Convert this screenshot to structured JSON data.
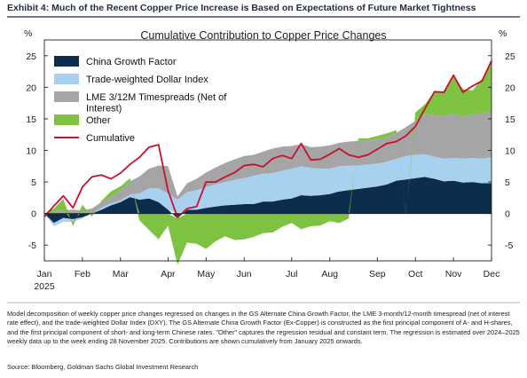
{
  "header": {
    "title": "Exhibit 4: Much of the Recent Copper Price Increase is Based on Expectations of Future Market Tightness"
  },
  "footer": {
    "note": "Model decomposition of weekly copper price changes regressed on changes in the GS Alternate China Growth Factor, the LME 3-month/12-month timespread (net of interest rate effect), and the trade-weighted Dollar Index (DXY). The GS Alternate China Growth Factor (Ex-Copper) is constructed as the first principal component of A- and H-shares, and the first principal component of short- and long-term Chinese rates. \"Other\" captures the regression residual and constant term. The regression is estimated over 2024–2025 weekly data up to the week ending 28 November 2025. Contributions are shown cumulatively from January 2025 onwards.",
    "source": "Source: Bloomberg, Goldman Sachs Global Investment Research"
  },
  "chart_data": {
    "type": "area",
    "title": "Cumulative Contribution to Copper Price Changes",
    "ylabel_left": "%",
    "ylabel_right": "%",
    "ylim": [
      -7.5,
      27.5
    ],
    "yticks": [
      -5,
      0,
      5,
      10,
      15,
      20,
      25
    ],
    "xlim": [
      0,
      47
    ],
    "xticks": [
      {
        "x": 0,
        "label": "Jan"
      },
      {
        "x": 4,
        "label": "Feb"
      },
      {
        "x": 8,
        "label": "Mar"
      },
      {
        "x": 13,
        "label": "Apr"
      },
      {
        "x": 17,
        "label": "May"
      },
      {
        "x": 21,
        "label": "Jun"
      },
      {
        "x": 26,
        "label": "Jul"
      },
      {
        "x": 30,
        "label": "Aug"
      },
      {
        "x": 35,
        "label": "Sep"
      },
      {
        "x": 39,
        "label": "Oct"
      },
      {
        "x": 43,
        "label": "Nov"
      },
      {
        "x": 47,
        "label": "Dec"
      }
    ],
    "year_label": "2025",
    "grid": false,
    "legend_position": "top-left",
    "series": [
      {
        "name": "China Growth Factor",
        "color": "#0c2d4e",
        "values": [
          0,
          -1.5,
          -0.7,
          -0.9,
          -0.6,
          0,
          0.6,
          1.3,
          1.8,
          2.6,
          2.2,
          2.4,
          1.8,
          0.6,
          -0.8,
          0.6,
          0.6,
          0.9,
          1.1,
          1.3,
          1.4,
          1.5,
          1.5,
          1.9,
          1.9,
          2.2,
          2.4,
          2.9,
          2.8,
          2.9,
          3.1,
          3.5,
          3.7,
          3.9,
          4.1,
          4.3,
          4.6,
          5.2,
          5.4,
          5.6,
          5.8,
          5.5,
          5.1,
          5.2,
          4.9,
          5,
          4.8,
          4.8
        ]
      },
      {
        "name": "Trade-weighted Dollar Index",
        "color": "#a8d1f0",
        "values": [
          0,
          -0.5,
          -0.6,
          -0.4,
          -0.2,
          0,
          0.3,
          0.3,
          0.3,
          0.4,
          1,
          1.6,
          2.2,
          2.6,
          2.2,
          2.8,
          3.1,
          3.3,
          3.5,
          3.7,
          3.9,
          4.1,
          4.5,
          4.4,
          4.5,
          4.6,
          4.7,
          4.6,
          4.4,
          4.2,
          4,
          4,
          3.9,
          3.7,
          3.7,
          3.6,
          3.6,
          3.5,
          3.7,
          3.7,
          3.6,
          3.5,
          3.6,
          3.6,
          3.8,
          3.8,
          3.9,
          4.1
        ]
      },
      {
        "name": "LME 3/12M Timespreads (Net of Interest)",
        "color": "#a5a5a5",
        "values": [
          0,
          0.3,
          0.6,
          0.6,
          0.5,
          0.8,
          0.9,
          1.1,
          1.5,
          2.1,
          2.7,
          3.1,
          3.6,
          4.3,
          0.5,
          1.4,
          1.8,
          2.3,
          2.7,
          3,
          3.3,
          3.5,
          3.3,
          3.5,
          3.9,
          3.8,
          3.6,
          3.5,
          3.3,
          3.5,
          3.7,
          3.7,
          3.8,
          3.9,
          3.8,
          3.9,
          3.9,
          4.1,
          4.6,
          5.4,
          6.4,
          6.6,
          6.8,
          7,
          6.7,
          6.9,
          7.2,
          7.3
        ]
      },
      {
        "name": "Other",
        "color": "#7ec242",
        "values": [
          0,
          0.5,
          1.7,
          -0.7,
          0.9,
          -0.5,
          0.2,
          0.8,
          0.7,
          0.5,
          -1.1,
          -2.6,
          -4.1,
          -1.9,
          -7.3,
          -4.6,
          -4.8,
          -5.6,
          -4.4,
          -3.6,
          -4.2,
          -4.1,
          -3.7,
          -3.1,
          -3,
          -2.1,
          -1.5,
          -2.5,
          -2,
          -1.9,
          -1.2,
          -1.5,
          -0.8,
          0.4,
          0.3,
          0.5,
          0.6,
          0.4,
          -0.2,
          1.3,
          1.5,
          3.7,
          3.7,
          6.1,
          4.3,
          3.8,
          5.4,
          7.7
        ]
      }
    ],
    "line": {
      "name": "Cumulative",
      "color": "#c8102e",
      "values": [
        -0.5,
        1.2,
        2.8,
        0.9,
        4.2,
        5.8,
        6.1,
        5.5,
        6.4,
        7.8,
        8.9,
        10.5,
        10.9,
        3.6,
        -0.6,
        0.8,
        1.1,
        5,
        5,
        5.8,
        6.5,
        7.6,
        7.8,
        7.4,
        8.7,
        9.2,
        8.7,
        11.1,
        8.5,
        8.6,
        9.4,
        10.3,
        9.3,
        8.9,
        9.3,
        10.2,
        11.1,
        11.4,
        12.3,
        13.8,
        16.6,
        19.3,
        19.2,
        21.9,
        19.2,
        20.2,
        21,
        24.2
      ]
    }
  }
}
